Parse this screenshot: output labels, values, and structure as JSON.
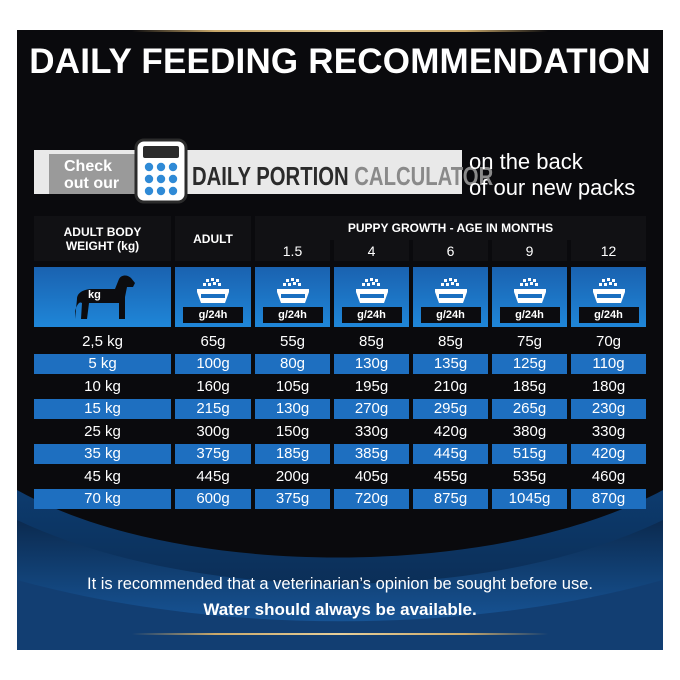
{
  "title": "DAILY FEEDING RECOMMENDATION",
  "banner": {
    "check_line1": "Check",
    "check_line2": "out our",
    "calc_part1": "DAILY PORTION",
    "calc_part2": "CALCULATOR",
    "back_line1": "on the back",
    "back_line2": "of our new packs"
  },
  "table": {
    "col1_header_line1": "ADULT BODY",
    "col1_header_line2": "WEIGHT (kg)",
    "adult_header": "ADULT",
    "puppy_header": "PUPPY GROWTH - AGE IN MONTHS",
    "months": [
      "1.5",
      "4",
      "6",
      "9",
      "12"
    ],
    "dog_label": "kg",
    "portion_label": "g/24h",
    "rows": [
      {
        "weight": "2,5 kg",
        "values": [
          "65g",
          "55g",
          "85g",
          "85g",
          "75g",
          "70g"
        ]
      },
      {
        "weight": "5 kg",
        "values": [
          "100g",
          "80g",
          "130g",
          "135g",
          "125g",
          "110g"
        ]
      },
      {
        "weight": "10 kg",
        "values": [
          "160g",
          "105g",
          "195g",
          "210g",
          "185g",
          "180g"
        ]
      },
      {
        "weight": "15 kg",
        "values": [
          "215g",
          "130g",
          "270g",
          "295g",
          "265g",
          "230g"
        ]
      },
      {
        "weight": "25 kg",
        "values": [
          "300g",
          "150g",
          "330g",
          "420g",
          "380g",
          "330g"
        ]
      },
      {
        "weight": "35 kg",
        "values": [
          "375g",
          "185g",
          "385g",
          "445g",
          "515g",
          "420g"
        ]
      },
      {
        "weight": "45 kg",
        "values": [
          "445g",
          "200g",
          "405g",
          "455g",
          "535g",
          "460g"
        ]
      },
      {
        "weight": "70 kg",
        "values": [
          "600g",
          "375g",
          "720g",
          "875g",
          "1045g",
          "870g"
        ]
      }
    ]
  },
  "note_line1": "It is recommended that a veterinarian’s opinion be sought before use.",
  "note_line2": "Water should always be available.",
  "colors": {
    "panel": "#0a0a0d",
    "highlight_row": "#1e6fc0",
    "icon_blue": "#1f86d8",
    "gold": "#c9a86a"
  },
  "icons": [
    "calculator-icon",
    "dog-icon",
    "food-bowl-icon"
  ]
}
